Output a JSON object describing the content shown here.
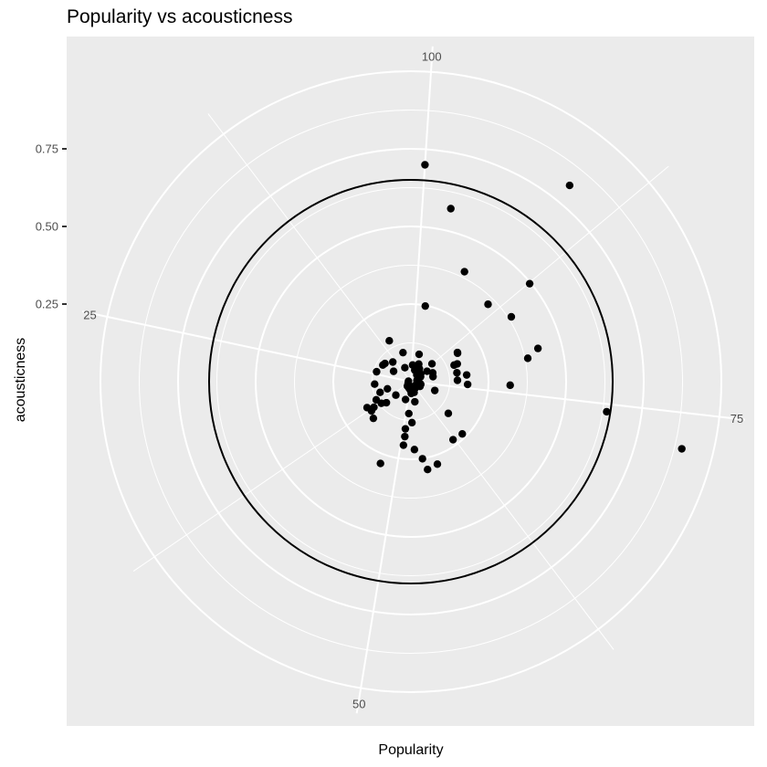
{
  "chart_data": {
    "type": "scatter",
    "coord": "polar",
    "title": "Popularity vs acousticness",
    "xlabel": "Popularity",
    "ylabel": "acousticness",
    "theta_variable": "Popularity",
    "radius_variable": "acousticness",
    "theta_range": [
      4,
      101
    ],
    "theta_direction": "counterclockwise",
    "radius_range": [
      0,
      1.0
    ],
    "radius_ticks": [
      {
        "value": 0.25,
        "label": "0.25"
      },
      {
        "value": 0.5,
        "label": "0.50"
      },
      {
        "value": 0.75,
        "label": "0.75"
      }
    ],
    "theta_ticks": [
      {
        "value": 25,
        "label": "25"
      },
      {
        "value": 50,
        "label": "50"
      },
      {
        "value": 75,
        "label": "75"
      },
      {
        "value": 100,
        "label": "100"
      }
    ],
    "reference_circle": 0.65,
    "grid": true,
    "colors": {
      "panel": "#ebebeb",
      "grid": "#ffffff",
      "point": "#000000",
      "circle": "#000000"
    },
    "points": [
      {
        "x": 100.0,
        "y": 0.7
      },
      {
        "x": 97.5,
        "y": 0.572
      },
      {
        "x": 94.0,
        "y": 0.394
      },
      {
        "x": 88.9,
        "y": 0.352
      },
      {
        "x": 85.6,
        "y": 0.385
      },
      {
        "x": 80.7,
        "y": 0.423
      },
      {
        "x": 79.8,
        "y": 0.384
      },
      {
        "x": 76.2,
        "y": 0.32
      },
      {
        "x": 74.4,
        "y": 0.638
      },
      {
        "x": 73.0,
        "y": 0.899
      },
      {
        "x": 90.5,
        "y": 0.813
      },
      {
        "x": 87.4,
        "y": 0.496
      },
      {
        "x": 98.1,
        "y": 0.248
      },
      {
        "x": 85.4,
        "y": 0.177
      },
      {
        "x": 85.2,
        "y": 0.176
      },
      {
        "x": 82.4,
        "y": 0.16
      },
      {
        "x": 82.4,
        "y": 0.149
      },
      {
        "x": 79.7,
        "y": 0.151
      },
      {
        "x": 77.2,
        "y": 0.15
      },
      {
        "x": 78.6,
        "y": 0.181
      },
      {
        "x": 76.0,
        "y": 0.183
      },
      {
        "x": 96.5,
        "y": 0.092
      },
      {
        "x": 80.2,
        "y": 0.073
      },
      {
        "x": 71.3,
        "y": 0.082
      },
      {
        "x": 65.9,
        "y": 0.158
      },
      {
        "x": 64.5,
        "y": 0.236
      },
      {
        "x": 62.2,
        "y": 0.231
      },
      {
        "x": 57.3,
        "y": 0.279
      },
      {
        "x": 55.4,
        "y": 0.288
      },
      {
        "x": 54.8,
        "y": 0.251
      },
      {
        "x": 53.3,
        "y": 0.219
      },
      {
        "x": 50.7,
        "y": 0.206
      },
      {
        "x": 50.8,
        "y": 0.178
      },
      {
        "x": 50.7,
        "y": 0.153
      },
      {
        "x": 52.9,
        "y": 0.132
      },
      {
        "x": 51.5,
        "y": 0.103
      },
      {
        "x": 47.0,
        "y": 0.281
      },
      {
        "x": 40.2,
        "y": 0.169
      },
      {
        "x": 39.2,
        "y": 0.104
      },
      {
        "x": 38.0,
        "y": 0.118
      },
      {
        "x": 37.6,
        "y": 0.145
      },
      {
        "x": 36.5,
        "y": 0.164
      },
      {
        "x": 38.1,
        "y": 0.158
      },
      {
        "x": 35.7,
        "y": 0.126
      },
      {
        "x": 33.4,
        "y": 0.105
      },
      {
        "x": 32.8,
        "y": 0.079
      },
      {
        "x": 29.3,
        "y": 0.117
      },
      {
        "x": 23.9,
        "y": 0.115
      },
      {
        "x": 18.8,
        "y": 0.102
      },
      {
        "x": 11.5,
        "y": 0.149
      },
      {
        "x": 15.5,
        "y": 0.086
      },
      {
        "x": 19.9,
        "y": 0.065
      },
      {
        "x": 8.1,
        "y": 0.097
      },
      {
        "x": 94.5,
        "y": 0.062
      },
      {
        "x": 99.4,
        "y": 0.054
      },
      {
        "x": 96.0,
        "y": 0.039
      },
      {
        "x": 92.0,
        "y": 0.05
      },
      {
        "x": 90.0,
        "y": 0.029
      },
      {
        "x": 87.0,
        "y": 0.04
      },
      {
        "x": 84.0,
        "y": 0.035
      },
      {
        "x": 80.0,
        "y": 0.02
      },
      {
        "x": 76.5,
        "y": 0.02
      },
      {
        "x": 74.6,
        "y": 0.02
      },
      {
        "x": 73.5,
        "y": 0.031
      },
      {
        "x": 72.6,
        "y": 0.033
      },
      {
        "x": 71.4,
        "y": 0.023
      },
      {
        "x": 69.3,
        "y": 0.033
      },
      {
        "x": 62.4,
        "y": 0.018
      },
      {
        "x": 57.0,
        "y": 0.036
      },
      {
        "x": 53.0,
        "y": 0.038
      },
      {
        "x": 51.0,
        "y": 0.026
      },
      {
        "x": 47.5,
        "y": 0.021
      },
      {
        "x": 42.0,
        "y": 0.018
      },
      {
        "x": 36.0,
        "y": 0.01
      },
      {
        "x": 25.0,
        "y": 0.008
      },
      {
        "x": 48.0,
        "y": 0.06
      },
      {
        "x": 55.5,
        "y": 0.066
      },
      {
        "x": 61.7,
        "y": 0.025
      },
      {
        "x": 39.5,
        "y": 0.065
      },
      {
        "x": 10.3,
        "y": 0.049
      },
      {
        "x": 82.7,
        "y": 0.076
      },
      {
        "x": 87.6,
        "y": 0.089
      },
      {
        "x": 85.6,
        "y": 0.062
      },
      {
        "x": 20.0,
        "y": 0.105
      }
    ]
  }
}
